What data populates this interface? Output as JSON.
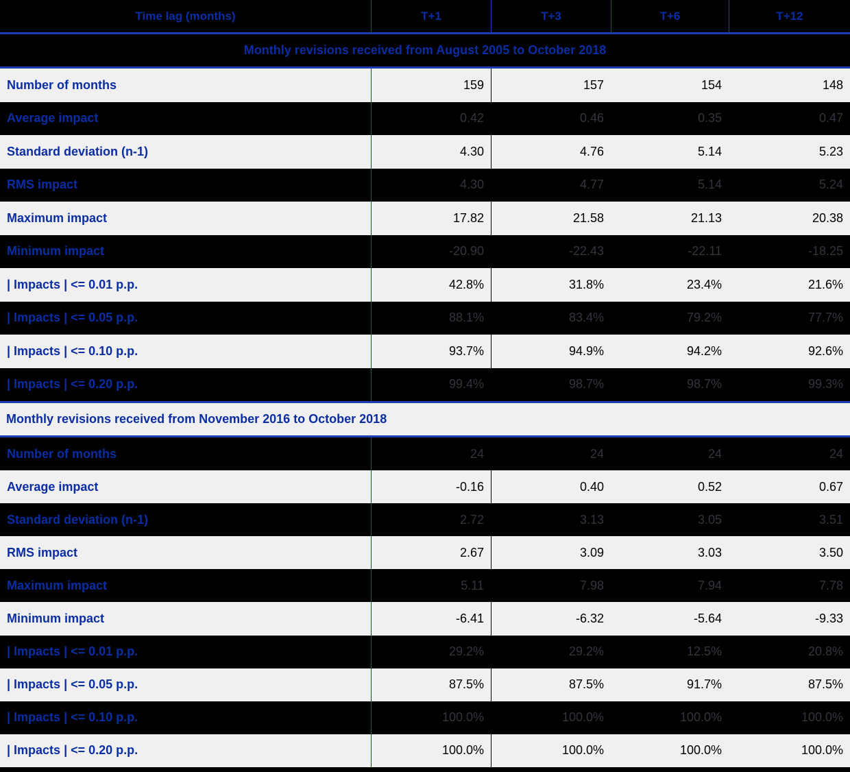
{
  "chart_data": {
    "type": "table",
    "header": {
      "label": "Time lag (months)",
      "columns": [
        "T+1",
        "T+3",
        "T+6",
        "T+12"
      ]
    },
    "sections": [
      {
        "title": "Monthly revisions received from August 2005 to October 2018",
        "title_style": "dark-centered",
        "rows": [
          {
            "label": "Number of months",
            "shade": "light",
            "values": [
              "159",
              "157",
              "154",
              "148"
            ]
          },
          {
            "label": "Average impact",
            "shade": "dark",
            "values": [
              "0.42",
              "0.46",
              "0.35",
              "0.47"
            ]
          },
          {
            "label": "Standard deviation (n-1)",
            "shade": "light",
            "values": [
              "4.30",
              "4.76",
              "5.14",
              "5.23"
            ]
          },
          {
            "label": "RMS impact",
            "shade": "dark",
            "values": [
              "4.30",
              "4.77",
              "5.14",
              "5.24"
            ]
          },
          {
            "label": "Maximum impact",
            "shade": "light",
            "values": [
              "17.82",
              "21.58",
              "21.13",
              "20.38"
            ]
          },
          {
            "label": "Minimum impact",
            "shade": "dark",
            "values": [
              "-20.90",
              "-22.43",
              "-22.11",
              "-18.25"
            ]
          },
          {
            "label": "| Impacts | <= 0.01 p.p.",
            "shade": "light",
            "values": [
              "42.8%",
              "31.8%",
              "23.4%",
              "21.6%"
            ]
          },
          {
            "label": "| Impacts | <= 0.05 p.p.",
            "shade": "dark",
            "values": [
              "88.1%",
              "83.4%",
              "79.2%",
              "77.7%"
            ]
          },
          {
            "label": "| Impacts | <= 0.10 p.p.",
            "shade": "light",
            "values": [
              "93.7%",
              "94.9%",
              "94.2%",
              "92.6%"
            ]
          },
          {
            "label": "| Impacts | <= 0.20 p.p.",
            "shade": "dark",
            "values": [
              "99.4%",
              "98.7%",
              "98.7%",
              "99.3%"
            ]
          }
        ]
      },
      {
        "title": "Monthly revisions received from November 2016 to October 2018",
        "title_style": "light-left",
        "rows": [
          {
            "label": "Number of months",
            "shade": "dark",
            "values": [
              "24",
              "24",
              "24",
              "24"
            ]
          },
          {
            "label": "Average impact",
            "shade": "light",
            "values": [
              "-0.16",
              "0.40",
              "0.52",
              "0.67"
            ]
          },
          {
            "label": "Standard deviation (n-1)",
            "shade": "dark",
            "values": [
              "2.72",
              "3.13",
              "3.05",
              "3.51"
            ]
          },
          {
            "label": "RMS impact",
            "shade": "light",
            "values": [
              "2.67",
              "3.09",
              "3.03",
              "3.50"
            ]
          },
          {
            "label": "Maximum impact",
            "shade": "dark",
            "values": [
              "5.11",
              "7.98",
              "7.94",
              "7.78"
            ]
          },
          {
            "label": "Minimum impact",
            "shade": "light",
            "values": [
              "-6.41",
              "-6.32",
              "-5.64",
              "-9.33"
            ]
          },
          {
            "label": "| Impacts | <= 0.01 p.p.",
            "shade": "dark",
            "values": [
              "29.2%",
              "29.2%",
              "12.5%",
              "20.8%"
            ]
          },
          {
            "label": "| Impacts | <= 0.05 p.p.",
            "shade": "light",
            "values": [
              "87.5%",
              "87.5%",
              "91.7%",
              "87.5%"
            ]
          },
          {
            "label": "| Impacts | <= 0.10 p.p.",
            "shade": "dark",
            "values": [
              "100.0%",
              "100.0%",
              "100.0%",
              "100.0%"
            ]
          },
          {
            "label": "| Impacts | <= 0.20 p.p.",
            "shade": "light",
            "values": [
              "100.0%",
              "100.0%",
              "100.0%",
              "100.0%"
            ]
          }
        ]
      }
    ]
  },
  "colors": {
    "accent_text": "#0B2DA3",
    "rule_blue": "#1B3DB5",
    "dark_row_bg": "#000000",
    "light_row_bg": "#F0F0F0",
    "value_on_light": "#000000",
    "value_on_dark": "#34343E"
  }
}
